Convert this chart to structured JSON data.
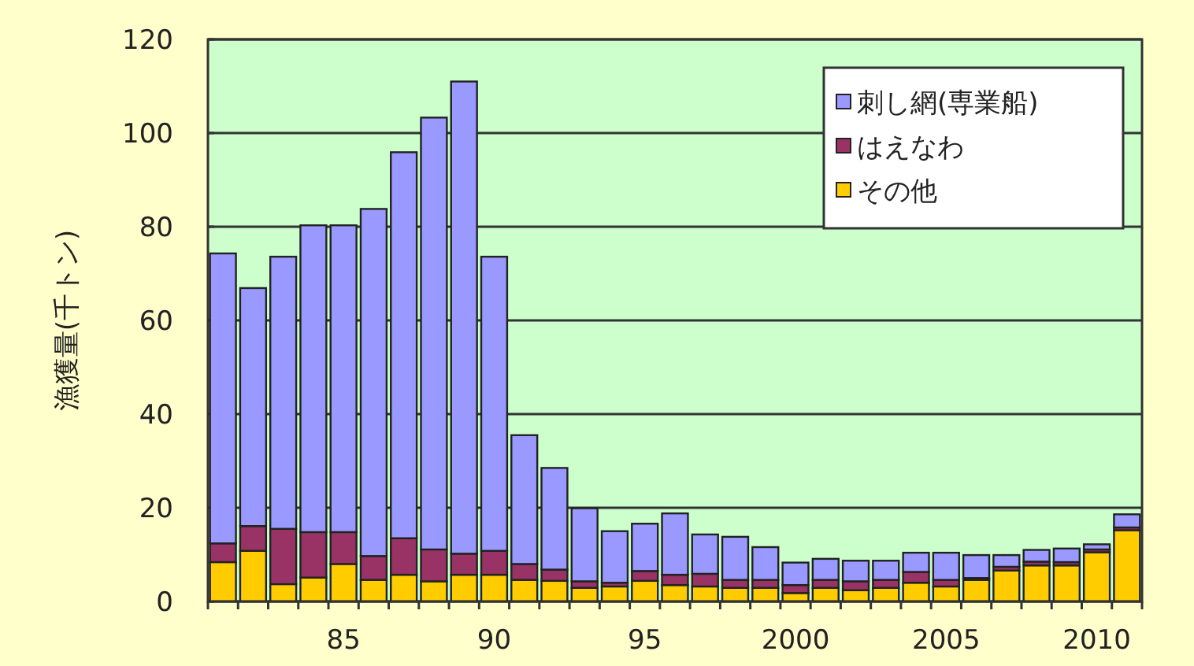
{
  "chart_data": {
    "type": "bar",
    "stacked": true,
    "ylabel": "漁獲量(千トン)",
    "categories": [
      null,
      null,
      null,
      null,
      "85",
      null,
      null,
      null,
      null,
      "90",
      null,
      null,
      null,
      null,
      "95",
      null,
      null,
      null,
      null,
      "2000",
      null,
      null,
      null,
      null,
      "2005",
      null,
      null,
      null,
      null,
      "2010",
      null
    ],
    "series": [
      {
        "name": "その他",
        "color": "#ffcc00",
        "values": [
          8.4,
          10.8,
          3.7,
          5.1,
          8.0,
          4.6,
          5.7,
          4.3,
          5.7,
          5.7,
          4.6,
          4.4,
          2.9,
          3.2,
          4.4,
          3.5,
          3.2,
          2.9,
          2.9,
          1.8,
          2.9,
          2.4,
          2.9,
          4.0,
          3.2,
          4.6,
          6.6,
          7.7,
          7.7,
          10.5,
          15.2
        ]
      },
      {
        "name": "はえなわ",
        "color": "#993366",
        "values": [
          4.0,
          5.3,
          11.8,
          9.7,
          6.8,
          5.1,
          7.8,
          6.8,
          4.5,
          5.1,
          3.4,
          2.4,
          1.4,
          0.8,
          2.1,
          2.2,
          2.7,
          1.7,
          1.7,
          1.7,
          1.7,
          1.9,
          1.7,
          2.3,
          1.4,
          0.4,
          0.8,
          0.8,
          0.7,
          0.6,
          0.6
        ]
      },
      {
        "name": "刺し網(専業船)",
        "color": "#9999ff",
        "values": [
          61.9,
          50.8,
          58.1,
          65.5,
          65.5,
          74.1,
          82.4,
          92.2,
          100.8,
          62.8,
          27.5,
          21.7,
          15.6,
          11.0,
          10.1,
          13.1,
          8.4,
          9.2,
          7.0,
          4.8,
          4.5,
          4.4,
          4.1,
          4.1,
          5.8,
          4.9,
          2.5,
          2.5,
          2.9,
          1.1,
          2.8
        ]
      }
    ],
    "ylim": [
      0,
      120
    ],
    "yticks": [
      0,
      20,
      40,
      60,
      80,
      100,
      120
    ],
    "grid": "y",
    "legend": "top right"
  }
}
